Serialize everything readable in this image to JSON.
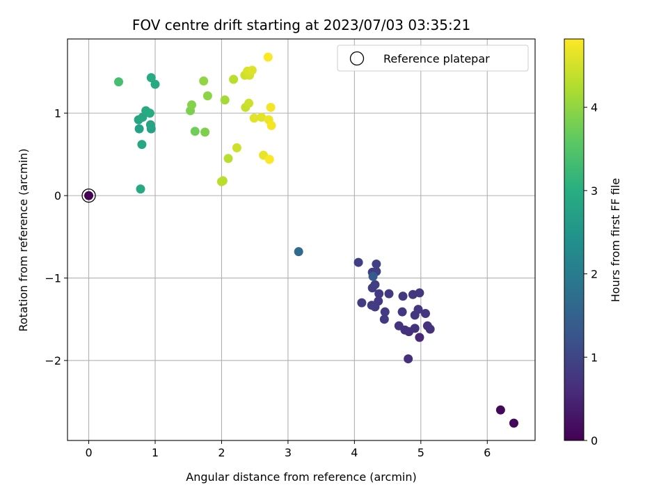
{
  "chart_data": {
    "type": "scatter",
    "title": "FOV centre drift starting at 2023/07/03 03:35:21",
    "xlabel": "Angular distance from reference (arcmin)",
    "ylabel": "Rotation from reference (arcmin)",
    "xlim": [
      -0.32,
      6.72
    ],
    "ylim": [
      -2.97,
      1.9
    ],
    "xticks": [
      0,
      1,
      2,
      3,
      4,
      5,
      6
    ],
    "yticks": [
      -2,
      -1,
      0,
      1
    ],
    "ytick_labels": [
      "−2",
      "−1",
      "0",
      "1"
    ],
    "grid": true,
    "colormap": "viridis",
    "colorbar": {
      "label": "Hours from first FF file",
      "range": [
        0,
        4.82
      ],
      "ticks": [
        0,
        1,
        2,
        3,
        4
      ]
    },
    "legend": {
      "position": "top-right",
      "entries": [
        {
          "label": "Reference platepar",
          "marker": "hollow-circle"
        }
      ]
    },
    "reference_point": {
      "x": 0,
      "y": 0
    },
    "points": [
      {
        "x": 0.0,
        "y": 0.0,
        "hours": 0.0
      },
      {
        "x": 6.2,
        "y": -2.6,
        "hours": 0.1
      },
      {
        "x": 6.4,
        "y": -2.76,
        "hours": 0.1
      },
      {
        "x": 4.98,
        "y": -1.72,
        "hours": 0.55
      },
      {
        "x": 4.81,
        "y": -1.98,
        "hours": 0.65
      },
      {
        "x": 4.82,
        "y": -1.65,
        "hours": 0.65
      },
      {
        "x": 4.76,
        "y": -1.63,
        "hours": 0.68
      },
      {
        "x": 5.1,
        "y": -1.58,
        "hours": 0.68
      },
      {
        "x": 5.14,
        "y": -1.62,
        "hours": 0.68
      },
      {
        "x": 4.67,
        "y": -1.58,
        "hours": 0.7
      },
      {
        "x": 4.91,
        "y": -1.61,
        "hours": 0.68
      },
      {
        "x": 4.72,
        "y": -1.41,
        "hours": 0.75
      },
      {
        "x": 4.91,
        "y": -1.45,
        "hours": 0.75
      },
      {
        "x": 4.96,
        "y": -1.38,
        "hours": 0.75
      },
      {
        "x": 5.07,
        "y": -1.43,
        "hours": 0.75
      },
      {
        "x": 4.88,
        "y": -1.2,
        "hours": 0.78
      },
      {
        "x": 4.98,
        "y": -1.18,
        "hours": 0.78
      },
      {
        "x": 4.73,
        "y": -1.22,
        "hours": 0.78
      },
      {
        "x": 4.52,
        "y": -1.19,
        "hours": 0.8
      },
      {
        "x": 4.45,
        "y": -1.5,
        "hours": 0.8
      },
      {
        "x": 4.46,
        "y": -1.41,
        "hours": 0.82
      },
      {
        "x": 4.37,
        "y": -1.19,
        "hours": 0.82
      },
      {
        "x": 4.36,
        "y": -1.28,
        "hours": 0.82
      },
      {
        "x": 4.31,
        "y": -1.35,
        "hours": 0.85
      },
      {
        "x": 4.26,
        "y": -1.33,
        "hours": 0.85
      },
      {
        "x": 4.11,
        "y": -1.3,
        "hours": 0.85
      },
      {
        "x": 4.27,
        "y": -1.12,
        "hours": 0.85
      },
      {
        "x": 4.31,
        "y": -1.08,
        "hours": 0.88
      },
      {
        "x": 4.27,
        "y": -0.93,
        "hours": 0.88
      },
      {
        "x": 4.33,
        "y": -0.92,
        "hours": 0.9
      },
      {
        "x": 4.06,
        "y": -0.81,
        "hours": 0.9
      },
      {
        "x": 4.33,
        "y": -0.83,
        "hours": 0.9
      },
      {
        "x": 4.28,
        "y": -0.98,
        "hours": 1.35
      },
      {
        "x": 3.16,
        "y": -0.68,
        "hours": 1.65
      },
      {
        "x": 0.78,
        "y": 0.08,
        "hours": 2.9
      },
      {
        "x": 0.8,
        "y": 0.62,
        "hours": 2.85
      },
      {
        "x": 0.76,
        "y": 0.81,
        "hours": 2.75
      },
      {
        "x": 0.94,
        "y": 0.81,
        "hours": 2.75
      },
      {
        "x": 0.75,
        "y": 0.92,
        "hours": 2.8
      },
      {
        "x": 0.93,
        "y": 0.86,
        "hours": 2.8
      },
      {
        "x": 0.81,
        "y": 0.95,
        "hours": 2.85
      },
      {
        "x": 0.86,
        "y": 1.03,
        "hours": 2.9
      },
      {
        "x": 0.92,
        "y": 1.0,
        "hours": 2.95
      },
      {
        "x": 0.94,
        "y": 1.43,
        "hours": 2.95
      },
      {
        "x": 1.0,
        "y": 1.35,
        "hours": 2.9
      },
      {
        "x": 0.45,
        "y": 1.38,
        "hours": 3.35
      },
      {
        "x": 1.6,
        "y": 0.78,
        "hours": 3.75
      },
      {
        "x": 1.75,
        "y": 0.77,
        "hours": 3.85
      },
      {
        "x": 1.53,
        "y": 1.03,
        "hours": 3.85
      },
      {
        "x": 1.55,
        "y": 1.1,
        "hours": 3.9
      },
      {
        "x": 1.79,
        "y": 1.21,
        "hours": 3.95
      },
      {
        "x": 1.73,
        "y": 1.39,
        "hours": 4.0
      },
      {
        "x": 2.05,
        "y": 1.16,
        "hours": 4.15
      },
      {
        "x": 2.1,
        "y": 0.45,
        "hours": 4.3
      },
      {
        "x": 2.02,
        "y": 0.18,
        "hours": 4.3
      },
      {
        "x": 2.0,
        "y": 0.17,
        "hours": 4.32
      },
      {
        "x": 2.18,
        "y": 1.41,
        "hours": 4.3
      },
      {
        "x": 2.23,
        "y": 0.58,
        "hours": 4.45
      },
      {
        "x": 2.36,
        "y": 1.07,
        "hours": 4.4
      },
      {
        "x": 2.41,
        "y": 1.12,
        "hours": 4.45
      },
      {
        "x": 2.35,
        "y": 1.46,
        "hours": 4.45
      },
      {
        "x": 2.42,
        "y": 1.46,
        "hours": 4.5
      },
      {
        "x": 2.39,
        "y": 1.51,
        "hours": 4.55
      },
      {
        "x": 2.46,
        "y": 1.52,
        "hours": 4.58
      },
      {
        "x": 2.49,
        "y": 0.94,
        "hours": 4.6
      },
      {
        "x": 2.6,
        "y": 0.95,
        "hours": 4.62
      },
      {
        "x": 2.63,
        "y": 0.49,
        "hours": 4.66
      },
      {
        "x": 2.71,
        "y": 0.92,
        "hours": 4.7
      },
      {
        "x": 2.75,
        "y": 0.85,
        "hours": 4.75
      },
      {
        "x": 2.74,
        "y": 1.07,
        "hours": 4.75
      },
      {
        "x": 2.72,
        "y": 0.44,
        "hours": 4.8
      },
      {
        "x": 2.7,
        "y": 1.68,
        "hours": 4.8
      }
    ]
  }
}
